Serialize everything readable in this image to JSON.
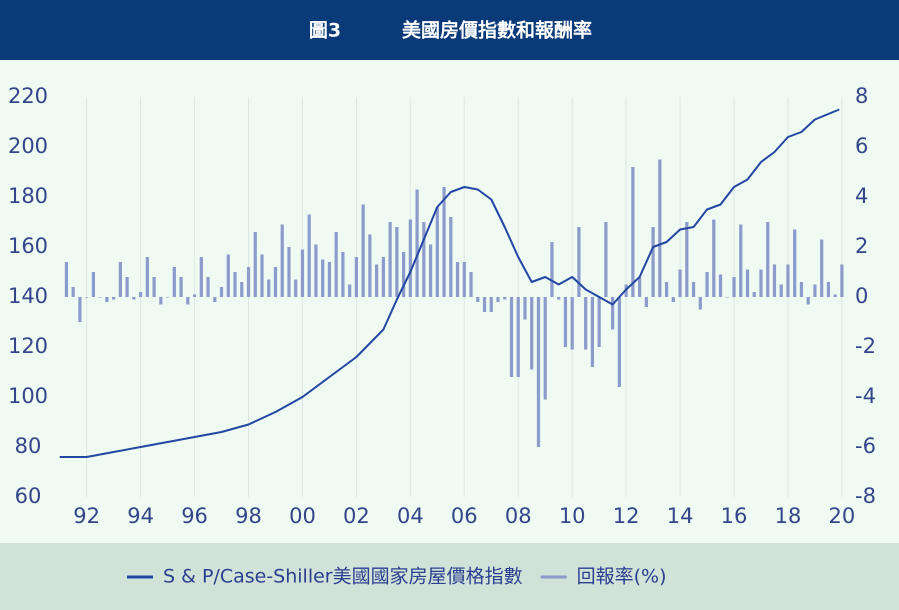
{
  "chart_data": {
    "type": "combo",
    "figure_label": "圖3",
    "title": "美國房價指數和報酬率",
    "xlim": [
      1990.9,
      2020.3
    ],
    "xticks": [
      {
        "value": 1992,
        "label": "92"
      },
      {
        "value": 1994,
        "label": "94"
      },
      {
        "value": 1996,
        "label": "96"
      },
      {
        "value": 1998,
        "label": "98"
      },
      {
        "value": 2000,
        "label": "00"
      },
      {
        "value": 2002,
        "label": "02"
      },
      {
        "value": 2004,
        "label": "04"
      },
      {
        "value": 2006,
        "label": "06"
      },
      {
        "value": 2008,
        "label": "08"
      },
      {
        "value": 2010,
        "label": "10"
      },
      {
        "value": 2012,
        "label": "12"
      },
      {
        "value": 2014,
        "label": "14"
      },
      {
        "value": 2016,
        "label": "16"
      },
      {
        "value": 2018,
        "label": "18"
      },
      {
        "value": 2020,
        "label": "20"
      }
    ],
    "ylim": [
      60,
      220
    ],
    "yticks": [
      60,
      80,
      100,
      120,
      140,
      160,
      180,
      200,
      220
    ],
    "y2lim": [
      -8,
      8
    ],
    "y2ticks": [
      -8,
      -6,
      -4,
      -2,
      0,
      2,
      4,
      6,
      8
    ],
    "grid": true,
    "series": [
      {
        "name": "S & P/Case-Shiller美國國家房屋價格指數",
        "type": "line",
        "color": "#2446a3",
        "x": [
          1991,
          1992,
          1993,
          1994,
          1995,
          1996,
          1997,
          1998,
          1999,
          2000,
          2001,
          2002,
          2003,
          2003.5,
          2004,
          2004.5,
          2005,
          2005.5,
          2006,
          2006.5,
          2007,
          2007.5,
          2008,
          2008.5,
          2009,
          2009.5,
          2010,
          2010.5,
          2011,
          2011.5,
          2012,
          2012.5,
          2013,
          2013.5,
          2014,
          2014.5,
          2015,
          2015.5,
          2016,
          2016.5,
          2017,
          2017.5,
          2018,
          2018.5,
          2019,
          2019.9
        ],
        "values": [
          76,
          76,
          78,
          80,
          82,
          84,
          86,
          89,
          94,
          100,
          108,
          116,
          127,
          139,
          150,
          163,
          176,
          182,
          184,
          183,
          179,
          168,
          156,
          146,
          148,
          145,
          148,
          143,
          140,
          137,
          143,
          148,
          160,
          162,
          167,
          168,
          175,
          177,
          184,
          187,
          194,
          198,
          204,
          206,
          211,
          215
        ]
      },
      {
        "name": "回報率(%)",
        "type": "bar",
        "axis": "y2",
        "color": "#8c9bcb",
        "x": [
          1991.25,
          1991.5,
          1991.75,
          1992,
          1992.25,
          1992.5,
          1992.75,
          1993,
          1993.25,
          1993.5,
          1993.75,
          1994,
          1994.25,
          1994.5,
          1994.75,
          1995,
          1995.25,
          1995.5,
          1995.75,
          1996,
          1996.25,
          1996.5,
          1996.75,
          1997,
          1997.25,
          1997.5,
          1997.75,
          1998,
          1998.25,
          1998.5,
          1998.75,
          1999,
          1999.25,
          1999.5,
          1999.75,
          2000,
          2000.25,
          2000.5,
          2000.75,
          2001,
          2001.25,
          2001.5,
          2001.75,
          2002,
          2002.25,
          2002.5,
          2002.75,
          2003,
          2003.25,
          2003.5,
          2003.75,
          2004,
          2004.25,
          2004.5,
          2004.75,
          2005,
          2005.25,
          2005.5,
          2005.75,
          2006,
          2006.25,
          2006.5,
          2006.75,
          2007,
          2007.25,
          2007.5,
          2007.75,
          2008,
          2008.25,
          2008.5,
          2008.75,
          2009,
          2009.25,
          2009.5,
          2009.75,
          2010,
          2010.25,
          2010.5,
          2010.75,
          2011,
          2011.25,
          2011.5,
          2011.75,
          2012,
          2012.25,
          2012.5,
          2012.75,
          2013,
          2013.25,
          2013.5,
          2013.75,
          2014,
          2014.25,
          2014.5,
          2014.75,
          2015,
          2015.25,
          2015.5,
          2015.75,
          2016,
          2016.25,
          2016.5,
          2016.75,
          2017,
          2017.25,
          2017.5,
          2017.75,
          2018,
          2018.25,
          2018.5,
          2018.75,
          2019,
          2019.25,
          2019.5,
          2019.75,
          2020
        ],
        "values": [
          1.4,
          0.4,
          -1.0,
          0,
          1.0,
          0,
          -0.2,
          -0.1,
          1.4,
          0.8,
          -0.1,
          0.2,
          1.6,
          0.8,
          -0.3,
          0,
          1.2,
          0.8,
          -0.3,
          0.1,
          1.6,
          0.8,
          -0.2,
          0.4,
          1.7,
          1.0,
          0.6,
          1.2,
          2.6,
          1.7,
          0.7,
          1.2,
          2.9,
          2.0,
          0.7,
          1.9,
          3.3,
          2.1,
          1.5,
          1.4,
          2.6,
          1.8,
          0.5,
          1.6,
          3.7,
          2.5,
          1.3,
          1.6,
          3.0,
          2.8,
          1.8,
          3.1,
          4.3,
          3.0,
          2.1,
          3.6,
          4.4,
          3.2,
          1.4,
          1.4,
          1.0,
          -0.2,
          -0.6,
          -0.6,
          -0.2,
          -0.1,
          -3.2,
          -3.2,
          -0.9,
          -2.9,
          -6.0,
          -4.1,
          2.2,
          -0.1,
          -2.0,
          -2.1,
          2.8,
          -2.1,
          -2.8,
          -2.0,
          3.0,
          -1.3,
          -3.6,
          0.5,
          5.2,
          0.8,
          -0.4,
          2.8,
          5.5,
          0.6,
          -0.2,
          1.1,
          3.0,
          0.6,
          -0.5,
          1.0,
          3.1,
          0.9,
          0,
          0.8,
          2.9,
          1.1,
          0.2,
          1.1,
          3.0,
          1.3,
          0.5,
          1.3,
          2.7,
          0.6,
          -0.3,
          0.5,
          2.3,
          0.6,
          0.1,
          1.3
        ]
      }
    ]
  }
}
